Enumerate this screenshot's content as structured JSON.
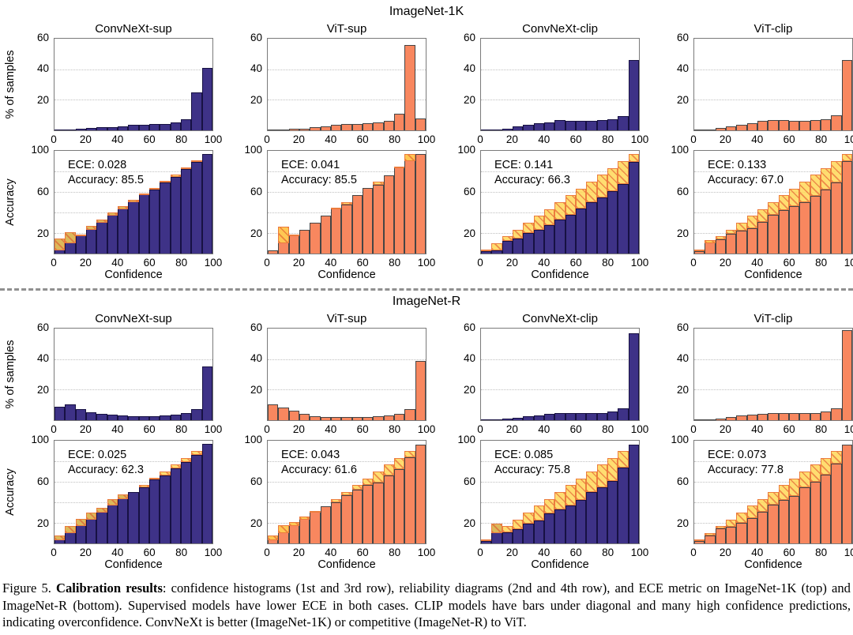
{
  "figure": {
    "caption": {
      "prefix": "Figure 5. ",
      "bold": "Calibration results",
      "rest": ": confidence histograms (1st and 3rd row), reliability diagrams (2nd and 4th row), and ECE metric on ImageNet-1K (top) and ImageNet-R (bottom). Supervised models have lower ECE in both cases. CLIP models have bars under diagonal and many high confidence predictions, indicating overconfidence. ConvNeXt is better (ImageNet-1K) or competitive (ImageNet-R) to ViT."
    }
  },
  "axes": {
    "x_ticks": [
      "0",
      "20",
      "40",
      "60",
      "80",
      "100"
    ],
    "hist_y_ticks": [
      20,
      40,
      60
    ],
    "hist_ylim": [
      0,
      60
    ],
    "rel_y_ticks": [
      20,
      60,
      100
    ],
    "rel_ylim": [
      0,
      100
    ],
    "hist_ylabel": "% of samples",
    "rel_ylabel": "Accuracy",
    "rel_xlabel": "Confidence",
    "n_bins": 15,
    "x_range": [
      0,
      100
    ],
    "grid": "dotted horizontal"
  },
  "colors": {
    "blue_fill": "#3E3287",
    "blue_edge": "#171143",
    "orange_fill": "#F8875F",
    "orange_edge": "#454545",
    "gap_fill": "#FFD650",
    "gap_hatch": "#DE4628"
  },
  "chart_data": [
    {
      "section": "ImageNet-1K",
      "columns": [
        {
          "title": "ConvNeXt-sup",
          "palette": "blue",
          "histogram": {
            "type": "bar",
            "ylabel": "% of samples",
            "ylim": [
              0,
              60
            ],
            "values": [
              0.3,
              0.6,
              1.0,
              1.5,
              2.0,
              2.2,
              2.6,
              3.8,
              3.8,
              4.0,
              4.0,
              5.0,
              7.0,
              25.0,
              41.0
            ]
          },
          "reliability": {
            "type": "bar",
            "ylabel": "Accuracy",
            "xlabel": "Confidence",
            "ylim": [
              0,
              100
            ],
            "accuracy_per_bin": [
              15,
              21,
              18,
              27,
              33,
              40,
              46,
              52,
              58,
              62,
              69,
              75,
              82,
              89,
              97
            ],
            "ece_label": "ECE: 0.028",
            "accuracy_label": "Accuracy: 85.5",
            "ece": 0.028,
            "accuracy": 85.5
          }
        },
        {
          "title": "ViT-sup",
          "palette": "orange",
          "histogram": {
            "type": "bar",
            "ylabel": "% of samples",
            "ylim": [
              0,
              60
            ],
            "values": [
              0.2,
              0.4,
              0.8,
              1.3,
              2.0,
              2.6,
              3.4,
              4.0,
              4.0,
              4.5,
              5.0,
              6.0,
              11.0,
              56.0,
              8.0
            ]
          },
          "reliability": {
            "type": "bar",
            "ylabel": "Accuracy",
            "xlabel": "Confidence",
            "ylim": [
              0,
              100
            ],
            "accuracy_per_bin": [
              3,
              26,
              18,
              23,
              30,
              37,
              45,
              48,
              57,
              64,
              67,
              76,
              85,
              97,
              97
            ],
            "ece_label": "ECE: 0.041",
            "accuracy_label": "Accuracy: 85.5",
            "ece": 0.041,
            "accuracy": 85.5
          }
        },
        {
          "title": "ConvNeXt-clip",
          "palette": "blue",
          "histogram": {
            "type": "bar",
            "ylabel": "% of samples",
            "ylim": [
              0,
              60
            ],
            "values": [
              0.1,
              0.4,
              1.0,
              2.5,
              3.5,
              4.5,
              5.0,
              6.5,
              6.0,
              6.0,
              6.0,
              6.5,
              7.5,
              9.5,
              46.0
            ]
          },
          "reliability": {
            "type": "bar",
            "ylabel": "Accuracy",
            "xlabel": "Confidence",
            "ylim": [
              0,
              100
            ],
            "accuracy_per_bin": [
              2,
              3,
              12,
              15,
              20,
              23,
              28,
              33,
              38,
              44,
              50,
              55,
              61,
              68,
              89
            ],
            "ece_label": "ECE: 0.141",
            "accuracy_label": "Accuracy: 66.3",
            "ece": 0.141,
            "accuracy": 66.3
          }
        },
        {
          "title": "ViT-clip",
          "palette": "orange",
          "histogram": {
            "type": "bar",
            "ylabel": "% of samples",
            "ylim": [
              0,
              60
            ],
            "values": [
              0.1,
              0.5,
              1.5,
              2.5,
              3.5,
              4.5,
              6.0,
              6.5,
              6.5,
              6.0,
              6.0,
              6.5,
              7.5,
              10.0,
              46.0
            ]
          },
          "reliability": {
            "type": "bar",
            "ylabel": "Accuracy",
            "xlabel": "Confidence",
            "ylim": [
              0,
              100
            ],
            "accuracy_per_bin": [
              2,
              13,
              14,
              19,
              22,
              25,
              31,
              38,
              42,
              46,
              50,
              56,
              62,
              69,
              90
            ],
            "ece_label": "ECE: 0.133",
            "accuracy_label": "Accuracy: 67.0",
            "ece": 0.133,
            "accuracy": 67.0
          }
        }
      ]
    },
    {
      "section": "ImageNet-R",
      "columns": [
        {
          "title": "ConvNeXt-sup",
          "palette": "blue",
          "histogram": {
            "type": "bar",
            "ylabel": "% of samples",
            "ylim": [
              0,
              60
            ],
            "values": [
              9.0,
              10.5,
              7.0,
              5.0,
              4.0,
              3.5,
              3.0,
              2.5,
              2.5,
              2.5,
              3.0,
              3.5,
              4.5,
              7.5,
              35.0
            ]
          },
          "reliability": {
            "type": "bar",
            "ylabel": "Accuracy",
            "xlabel": "Confidence",
            "ylim": [
              0,
              100
            ],
            "accuracy_per_bin": [
              8,
              17,
              24,
              30,
              35,
              43,
              48,
              50,
              55,
              62,
              66,
              73,
              79,
              86,
              97
            ],
            "ece_label": "ECE: 0.025",
            "accuracy_label": "Accuracy: 62.3",
            "ece": 0.025,
            "accuracy": 62.3
          }
        },
        {
          "title": "ViT-sup",
          "palette": "orange",
          "histogram": {
            "type": "bar",
            "ylabel": "% of samples",
            "ylim": [
              0,
              60
            ],
            "values": [
              10.5,
              8.5,
              6.0,
              4.0,
              2.5,
              2.0,
              2.0,
              2.0,
              2.0,
              2.0,
              2.5,
              3.0,
              4.0,
              7.5,
              39.0
            ]
          },
          "reliability": {
            "type": "bar",
            "ylabel": "Accuracy",
            "xlabel": "Confidence",
            "ylim": [
              0,
              100
            ],
            "accuracy_per_bin": [
              8,
              18,
              21,
              26,
              31,
              36,
              40,
              47,
              52,
              57,
              59,
              66,
              72,
              84,
              96
            ],
            "ece_label": "ECE: 0.043",
            "accuracy_label": "Accuracy: 61.6",
            "ece": 0.043,
            "accuracy": 61.6
          }
        },
        {
          "title": "ConvNeXt-clip",
          "palette": "blue",
          "histogram": {
            "type": "bar",
            "ylabel": "% of samples",
            "ylim": [
              0,
              60
            ],
            "values": [
              0.1,
              0.3,
              0.8,
              1.5,
              2.5,
              3.0,
              4.0,
              4.5,
              4.5,
              4.5,
              4.5,
              4.5,
              5.5,
              8.0,
              57.0
            ]
          },
          "reliability": {
            "type": "bar",
            "ylabel": "Accuracy",
            "xlabel": "Confidence",
            "ylim": [
              0,
              100
            ],
            "accuracy_per_bin": [
              2,
              19,
              11,
              14,
              19,
              22,
              29,
              33,
              37,
              42,
              50,
              55,
              61,
              74,
              96
            ],
            "ece_label": "ECE: 0.085",
            "accuracy_label": "Accuracy: 75.8",
            "ece": 0.085,
            "accuracy": 75.8
          }
        },
        {
          "title": "ViT-clip",
          "palette": "orange",
          "histogram": {
            "type": "bar",
            "ylabel": "% of samples",
            "ylim": [
              0,
              60
            ],
            "values": [
              0.1,
              0.3,
              1.0,
              2.0,
              3.0,
              3.5,
              4.0,
              4.5,
              4.5,
              4.5,
              4.5,
              4.5,
              5.5,
              8.0,
              59.0
            ]
          },
          "reliability": {
            "type": "bar",
            "ylabel": "Accuracy",
            "xlabel": "Confidence",
            "ylim": [
              0,
              100
            ],
            "accuracy_per_bin": [
              2,
              8,
              15,
              16,
              20,
              25,
              31,
              38,
              42,
              46,
              55,
              60,
              67,
              78,
              96
            ],
            "ece_label": "ECE: 0.073",
            "accuracy_label": "Accuracy: 77.8",
            "ece": 0.073,
            "accuracy": 77.8
          }
        }
      ]
    }
  ]
}
